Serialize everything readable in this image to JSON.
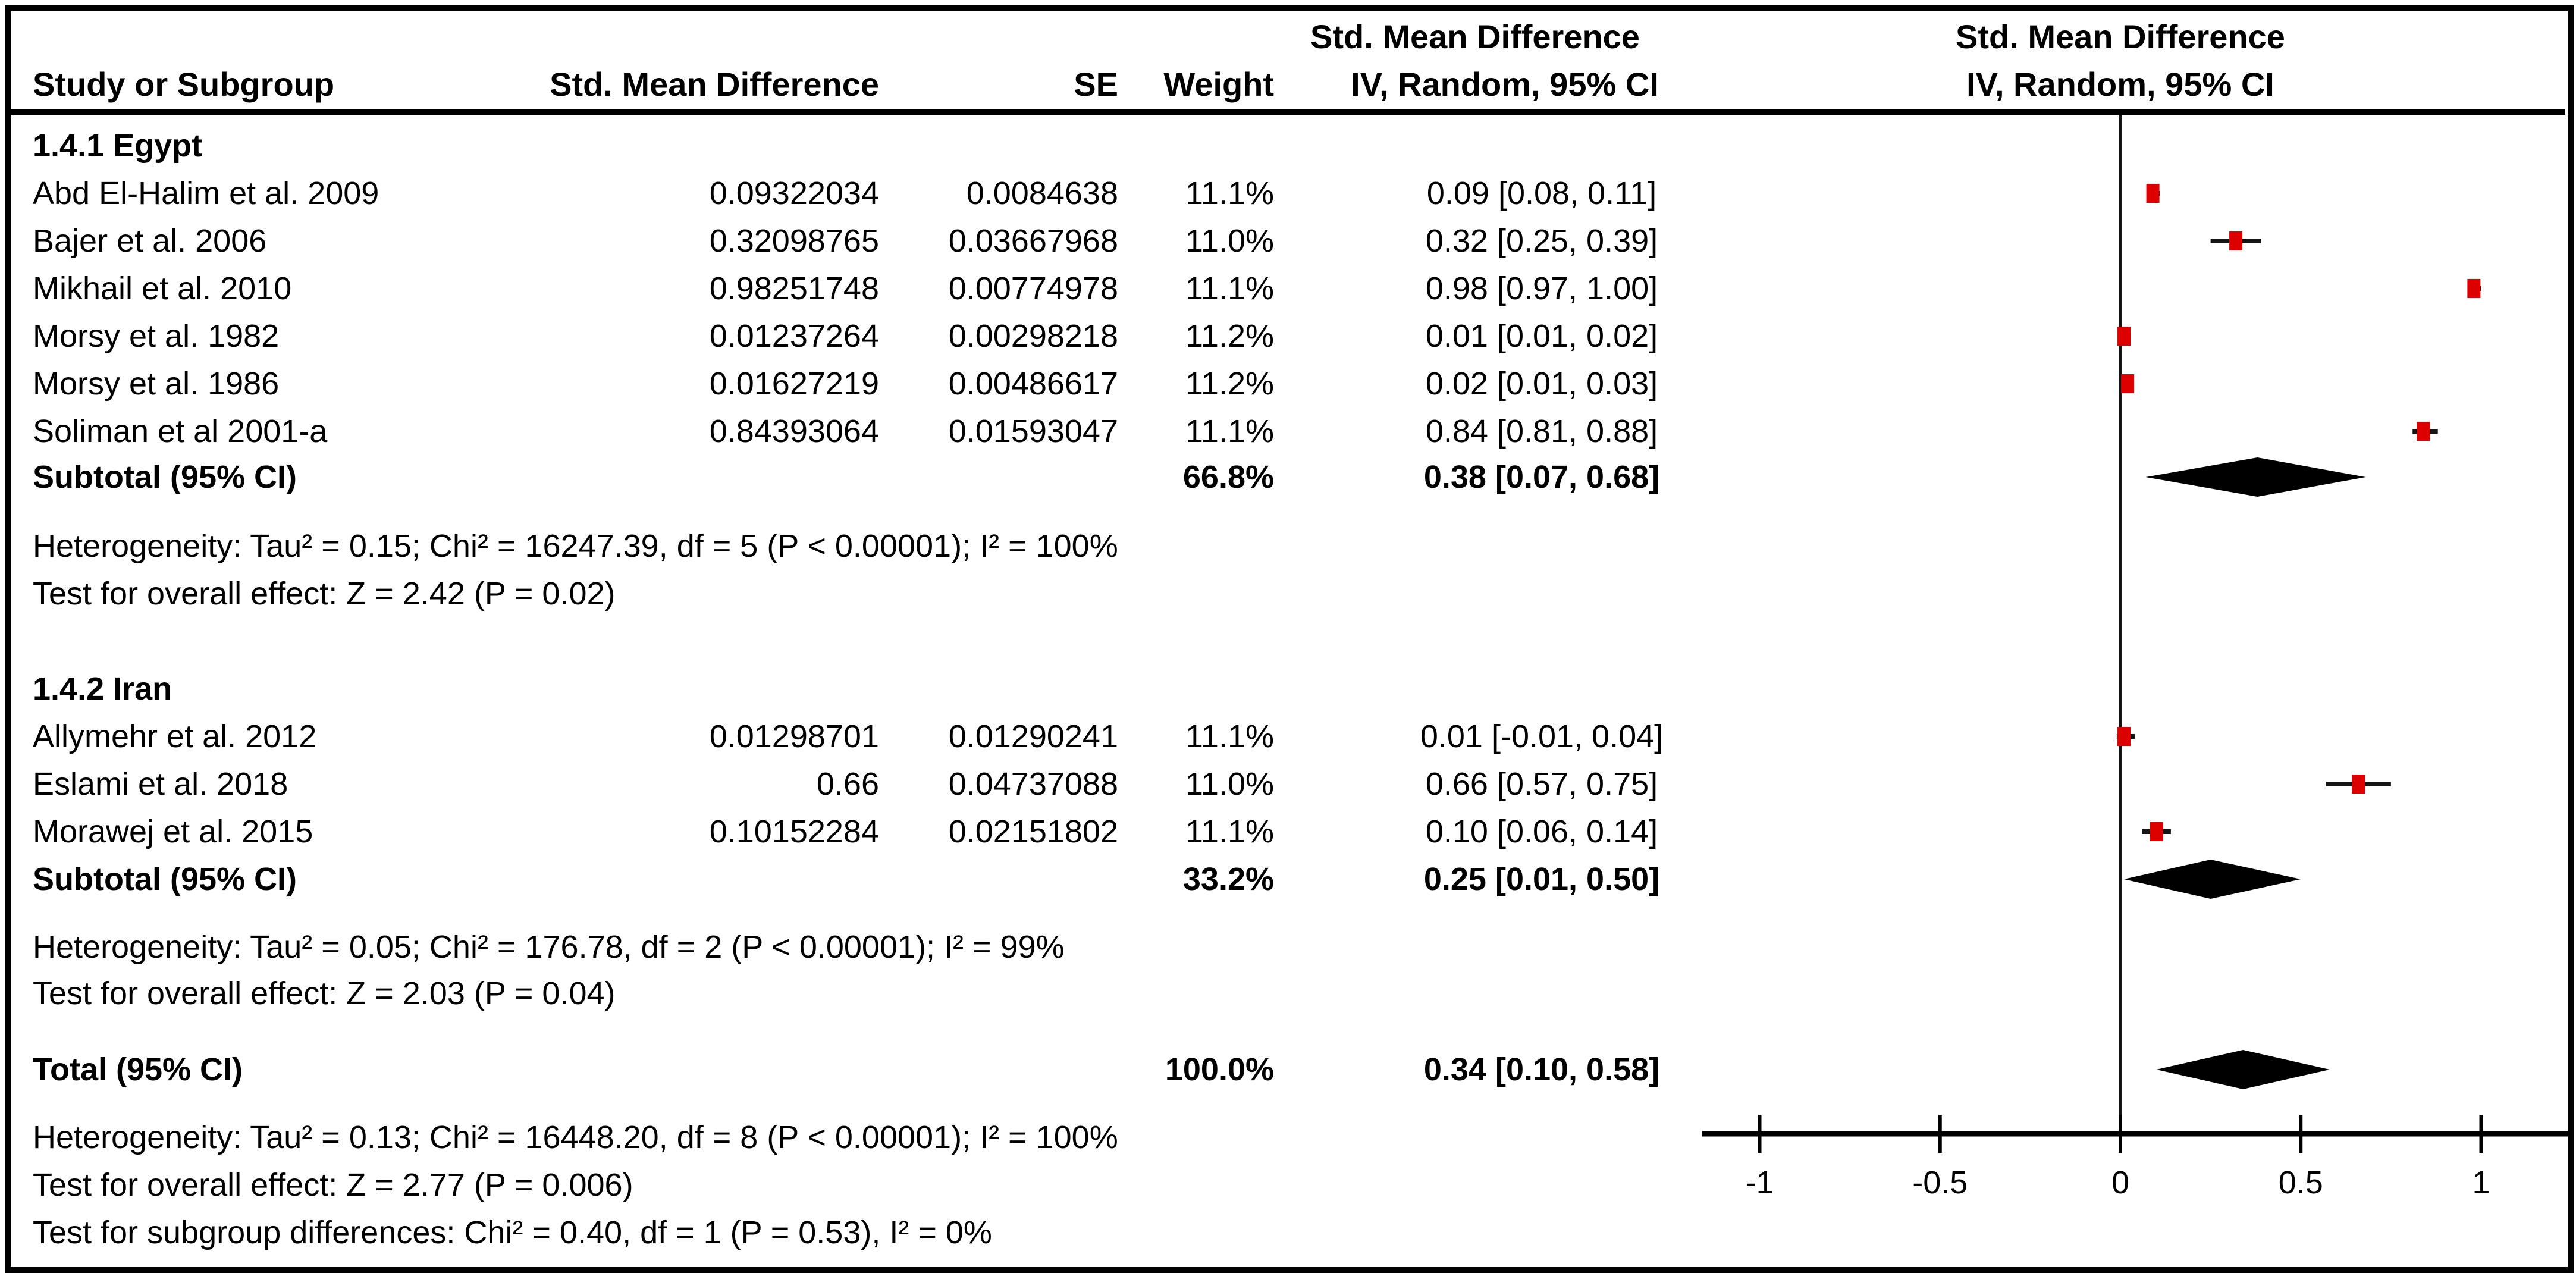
{
  "colors": {
    "marker_red": "#dd0000",
    "line_black": "#141414",
    "background": "#ffffff",
    "text": "#000000"
  },
  "chart_data": {
    "type": "forest",
    "effect_measure": "Std. Mean Difference",
    "model": "IV, Random, 95% CI",
    "columns": {
      "study": "Study or Subgroup",
      "smd": "Std. Mean Difference",
      "se": "SE",
      "weight": "Weight",
      "ci_group_header": "Std. Mean Difference",
      "ci": "IV, Random, 95% CI",
      "plot_title": "Std. Mean Difference",
      "plot_subtitle": "IV, Random, 95% CI"
    },
    "x_axis": {
      "ticks": [
        "-1",
        "-0.5",
        "0",
        "0.5",
        "1"
      ],
      "tick_values": [
        -1,
        -0.5,
        0,
        0.5,
        1
      ],
      "min": -1.15,
      "max": 1.25
    },
    "subgroups": [
      {
        "label": "1.4.1 Egypt",
        "studies": [
          {
            "name": "Abd El-Halim et al. 2009",
            "smd": "0.09322034",
            "se": "0.0084638",
            "weight": "11.1%",
            "ci_text": "0.09 [0.08, 0.11]",
            "est": 0.09,
            "lo": 0.08,
            "hi": 0.11
          },
          {
            "name": "Bajer et al. 2006",
            "smd": "0.32098765",
            "se": "0.03667968",
            "weight": "11.0%",
            "ci_text": "0.32 [0.25, 0.39]",
            "est": 0.32,
            "lo": 0.25,
            "hi": 0.39
          },
          {
            "name": "Mikhail et al. 2010",
            "smd": "0.98251748",
            "se": "0.00774978",
            "weight": "11.1%",
            "ci_text": "0.98 [0.97, 1.00]",
            "est": 0.98,
            "lo": 0.97,
            "hi": 1.0
          },
          {
            "name": "Morsy et al. 1982",
            "smd": "0.01237264",
            "se": "0.00298218",
            "weight": "11.2%",
            "ci_text": "0.01 [0.01, 0.02]",
            "est": 0.01,
            "lo": 0.01,
            "hi": 0.02
          },
          {
            "name": "Morsy et al. 1986",
            "smd": "0.01627219",
            "se": "0.00486617",
            "weight": "11.2%",
            "ci_text": "0.02 [0.01, 0.03]",
            "est": 0.02,
            "lo": 0.01,
            "hi": 0.03
          },
          {
            "name": "Soliman et al 2001-a",
            "smd": "0.84393064",
            "se": "0.01593047",
            "weight": "11.1%",
            "ci_text": "0.84 [0.81, 0.88]",
            "est": 0.84,
            "lo": 0.81,
            "hi": 0.88
          }
        ],
        "subtotal": {
          "label": "Subtotal (95% CI)",
          "weight": "66.8%",
          "ci_text": "0.38 [0.07, 0.68]",
          "est": 0.38,
          "lo": 0.07,
          "hi": 0.68
        },
        "heterogeneity": "Heterogeneity: Tau² = 0.15; Chi² = 16247.39, df = 5 (P < 0.00001); I² = 100%",
        "overall_effect": "Test for overall effect: Z = 2.42 (P = 0.02)"
      },
      {
        "label": "1.4.2 Iran",
        "studies": [
          {
            "name": "Allymehr et al. 2012",
            "smd": "0.01298701",
            "se": "0.01290241",
            "weight": "11.1%",
            "ci_text": "0.01 [-0.01, 0.04]",
            "est": 0.01,
            "lo": -0.01,
            "hi": 0.04
          },
          {
            "name": "Eslami et al. 2018",
            "smd": "0.66",
            "se": "0.04737088",
            "weight": "11.0%",
            "ci_text": "0.66 [0.57, 0.75]",
            "est": 0.66,
            "lo": 0.57,
            "hi": 0.75
          },
          {
            "name": "Morawej et al. 2015",
            "smd": "0.10152284",
            "se": "0.02151802",
            "weight": "11.1%",
            "ci_text": "0.10 [0.06, 0.14]",
            "est": 0.1,
            "lo": 0.06,
            "hi": 0.14
          }
        ],
        "subtotal": {
          "label": "Subtotal (95% CI)",
          "weight": "33.2%",
          "ci_text": "0.25 [0.01, 0.50]",
          "est": 0.25,
          "lo": 0.01,
          "hi": 0.5
        },
        "heterogeneity": "Heterogeneity: Tau² = 0.05; Chi² = 176.78, df = 2 (P < 0.00001); I² = 99%",
        "overall_effect": "Test for overall effect: Z = 2.03 (P = 0.04)"
      }
    ],
    "total": {
      "label": "Total (95% CI)",
      "weight": "100.0%",
      "ci_text": "0.34 [0.10, 0.58]",
      "est": 0.34,
      "lo": 0.1,
      "hi": 0.58
    },
    "footer": [
      "Heterogeneity: Tau² = 0.13; Chi² = 16448.20, df = 8 (P < 0.00001); I² = 100%",
      "Test for overall effect: Z = 2.77 (P = 0.006)",
      "Test for subgroup differences: Chi² = 0.40, df = 1 (P = 0.53), I² = 0%"
    ]
  }
}
